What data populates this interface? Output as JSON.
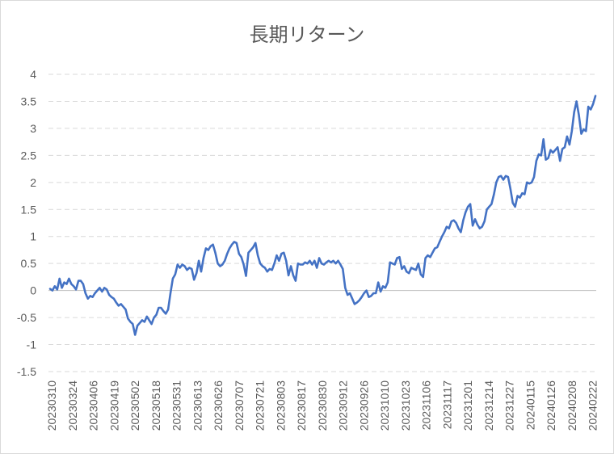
{
  "chart_data": {
    "type": "line",
    "title": "長期リターン",
    "xlabel": "",
    "ylabel": "",
    "ylim": [
      -1.5,
      4
    ],
    "y_ticks": [
      "4",
      "3.5",
      "3",
      "2.5",
      "2",
      "1.5",
      "1",
      "0.5",
      "0",
      "-0.5",
      "-1",
      "-1.5"
    ],
    "x_tick_labels": [
      "20230310",
      "20230324",
      "20230406",
      "20230419",
      "20230502",
      "20230518",
      "20230531",
      "20230613",
      "20230626",
      "20230707",
      "20230721",
      "20230803",
      "20230817",
      "20230830",
      "20230912",
      "20230926",
      "20231010",
      "20231023",
      "20231106",
      "20231117",
      "20231201",
      "20231214",
      "20231227",
      "20240115",
      "20240126",
      "20240208",
      "20240222"
    ],
    "grid": "horizontal dashed",
    "legend": "none",
    "line_color": "#4472c4",
    "series": [
      {
        "values": [
          0.03,
          0.0,
          0.08,
          0.02,
          0.22,
          0.05,
          0.15,
          0.12,
          0.22,
          0.12,
          0.08,
          0.02,
          0.18,
          0.18,
          0.12,
          -0.05,
          -0.15,
          -0.1,
          -0.12,
          -0.05,
          0.0,
          0.05,
          -0.02,
          0.05,
          0.02,
          -0.08,
          -0.12,
          -0.15,
          -0.22,
          -0.28,
          -0.25,
          -0.3,
          -0.35,
          -0.52,
          -0.58,
          -0.62,
          -0.82,
          -0.65,
          -0.6,
          -0.55,
          -0.58,
          -0.48,
          -0.55,
          -0.62,
          -0.5,
          -0.45,
          -0.32,
          -0.32,
          -0.38,
          -0.43,
          -0.35,
          -0.05,
          0.22,
          0.3,
          0.48,
          0.42,
          0.48,
          0.45,
          0.38,
          0.42,
          0.4,
          0.2,
          0.32,
          0.55,
          0.35,
          0.6,
          0.78,
          0.75,
          0.82,
          0.85,
          0.7,
          0.5,
          0.45,
          0.48,
          0.55,
          0.68,
          0.78,
          0.85,
          0.9,
          0.88,
          0.68,
          0.62,
          0.48,
          0.27,
          0.7,
          0.75,
          0.8,
          0.88,
          0.65,
          0.5,
          0.45,
          0.42,
          0.35,
          0.4,
          0.38,
          0.5,
          0.65,
          0.55,
          0.68,
          0.7,
          0.55,
          0.28,
          0.45,
          0.28,
          0.18,
          0.5,
          0.48,
          0.48,
          0.52,
          0.5,
          0.55,
          0.48,
          0.55,
          0.42,
          0.6,
          0.5,
          0.48,
          0.52,
          0.55,
          0.52,
          0.55,
          0.5,
          0.55,
          0.48,
          0.4,
          0.05,
          -0.08,
          -0.05,
          -0.15,
          -0.25,
          -0.22,
          -0.18,
          -0.12,
          -0.05,
          0.0,
          -0.12,
          -0.1,
          -0.05,
          -0.05,
          0.15,
          -0.02,
          0.08,
          0.05,
          0.15,
          0.52,
          0.5,
          0.48,
          0.6,
          0.62,
          0.4,
          0.45,
          0.35,
          0.32,
          0.42,
          0.4,
          0.38,
          0.5,
          0.3,
          0.25,
          0.6,
          0.65,
          0.62,
          0.7,
          0.78,
          0.8,
          0.9,
          1.0,
          1.08,
          1.18,
          1.15,
          1.28,
          1.3,
          1.25,
          1.15,
          1.08,
          1.3,
          1.45,
          1.55,
          1.6,
          1.2,
          1.32,
          1.22,
          1.15,
          1.18,
          1.28,
          1.5,
          1.55,
          1.6,
          1.78,
          2.0,
          2.1,
          2.12,
          2.05,
          2.12,
          2.1,
          1.88,
          1.62,
          1.55,
          1.75,
          1.72,
          1.8,
          1.78,
          2.0,
          1.98,
          2.0,
          2.1,
          2.4,
          2.52,
          2.5,
          2.8,
          2.42,
          2.45,
          2.6,
          2.55,
          2.6,
          2.65,
          2.4,
          2.62,
          2.65,
          2.85,
          2.7,
          2.95,
          3.3,
          3.5,
          3.25,
          2.9,
          2.98,
          2.95,
          3.4,
          3.35,
          3.45,
          3.6
        ]
      }
    ]
  }
}
